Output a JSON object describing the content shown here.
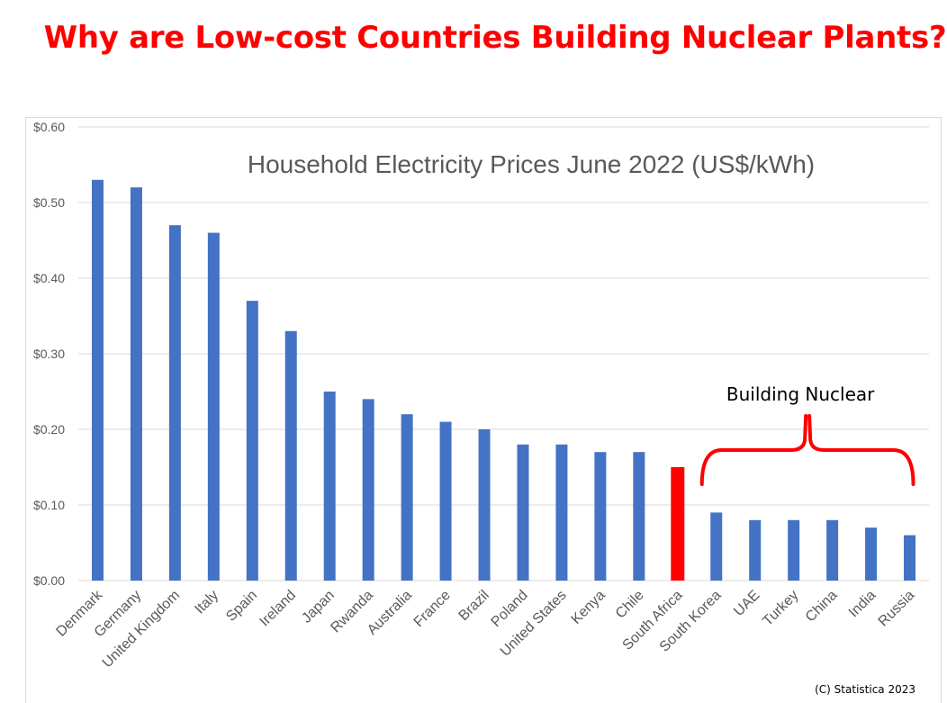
{
  "headline": "Why are Low-cost Countries Building Nuclear Plants?",
  "credit": "(C) Statistica 2023",
  "colors": {
    "bar": "#4472c4",
    "highlight": "#ff0000",
    "bracket": "#ff0000",
    "grid": "#d9d9d9"
  },
  "chart_data": {
    "type": "bar",
    "title": "Household Electricity Prices June 2022 (US$/kWh)",
    "xlabel": "",
    "ylabel": "",
    "ylim": [
      0,
      0.6
    ],
    "y_ticks": [
      "$0.00",
      "$0.10",
      "$0.20",
      "$0.30",
      "$0.40",
      "$0.50",
      "$0.60"
    ],
    "grid": true,
    "categories": [
      "Denmark",
      "Germany",
      "United Kingdom",
      "Italy",
      "Spain",
      "Ireland",
      "Japan",
      "Rwanda",
      "Australia",
      "France",
      "Brazil",
      "Poland",
      "United States",
      "Kenya",
      "Chile",
      "South Africa",
      "South Korea",
      "UAE",
      "Turkey",
      "China",
      "India",
      "Russia"
    ],
    "values": [
      0.53,
      0.52,
      0.47,
      0.46,
      0.37,
      0.33,
      0.25,
      0.24,
      0.22,
      0.21,
      0.2,
      0.18,
      0.18,
      0.17,
      0.17,
      0.15,
      0.09,
      0.08,
      0.08,
      0.08,
      0.07,
      0.06
    ],
    "highlighted_category": "South Africa",
    "annotation": {
      "text": "Building Nuclear",
      "from": "South Korea",
      "to": "Russia"
    }
  }
}
